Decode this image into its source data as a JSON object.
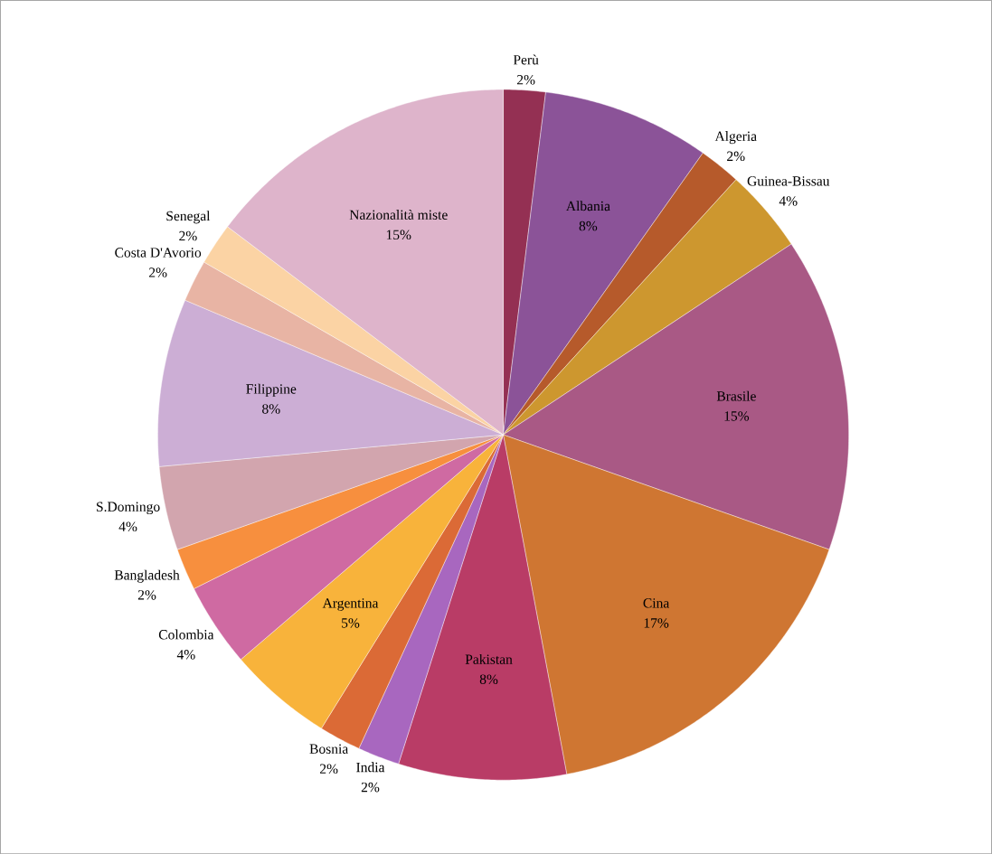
{
  "chart_data": {
    "type": "pie",
    "categories": [
      "Perù",
      "Albania",
      "Algeria",
      "Guinea-Bissau",
      "Brasile",
      "Cina",
      "Pakistan",
      "India",
      "Bosnia",
      "Argentina",
      "Colombia",
      "Bangladesh",
      "S.Domingo",
      "Filippine",
      "Costa D'Avorio",
      "Senegal",
      "Nazionalità miste"
    ],
    "values": [
      2,
      8,
      2,
      4,
      15,
      17,
      8,
      2,
      2,
      5,
      4,
      2,
      4,
      8,
      2,
      2,
      15
    ],
    "value_labels": [
      "2%",
      "8%",
      "2%",
      "4%",
      "15%",
      "17%",
      "8%",
      "2%",
      "2%",
      "5%",
      "4%",
      "2%",
      "4%",
      "8%",
      "2%",
      "2%",
      "15%"
    ],
    "colors": [
      "#943053",
      "#8b5398",
      "#b65a2b",
      "#cd972f",
      "#a95985",
      "#cf7632",
      "#b93c66",
      "#a867bf",
      "#db6a36",
      "#f8b33b",
      "#cf6aa2",
      "#f78f3e",
      "#d2a5ae",
      "#ccaed5",
      "#e8b4a4",
      "#fbd3a4",
      "#deb4cb"
    ]
  }
}
